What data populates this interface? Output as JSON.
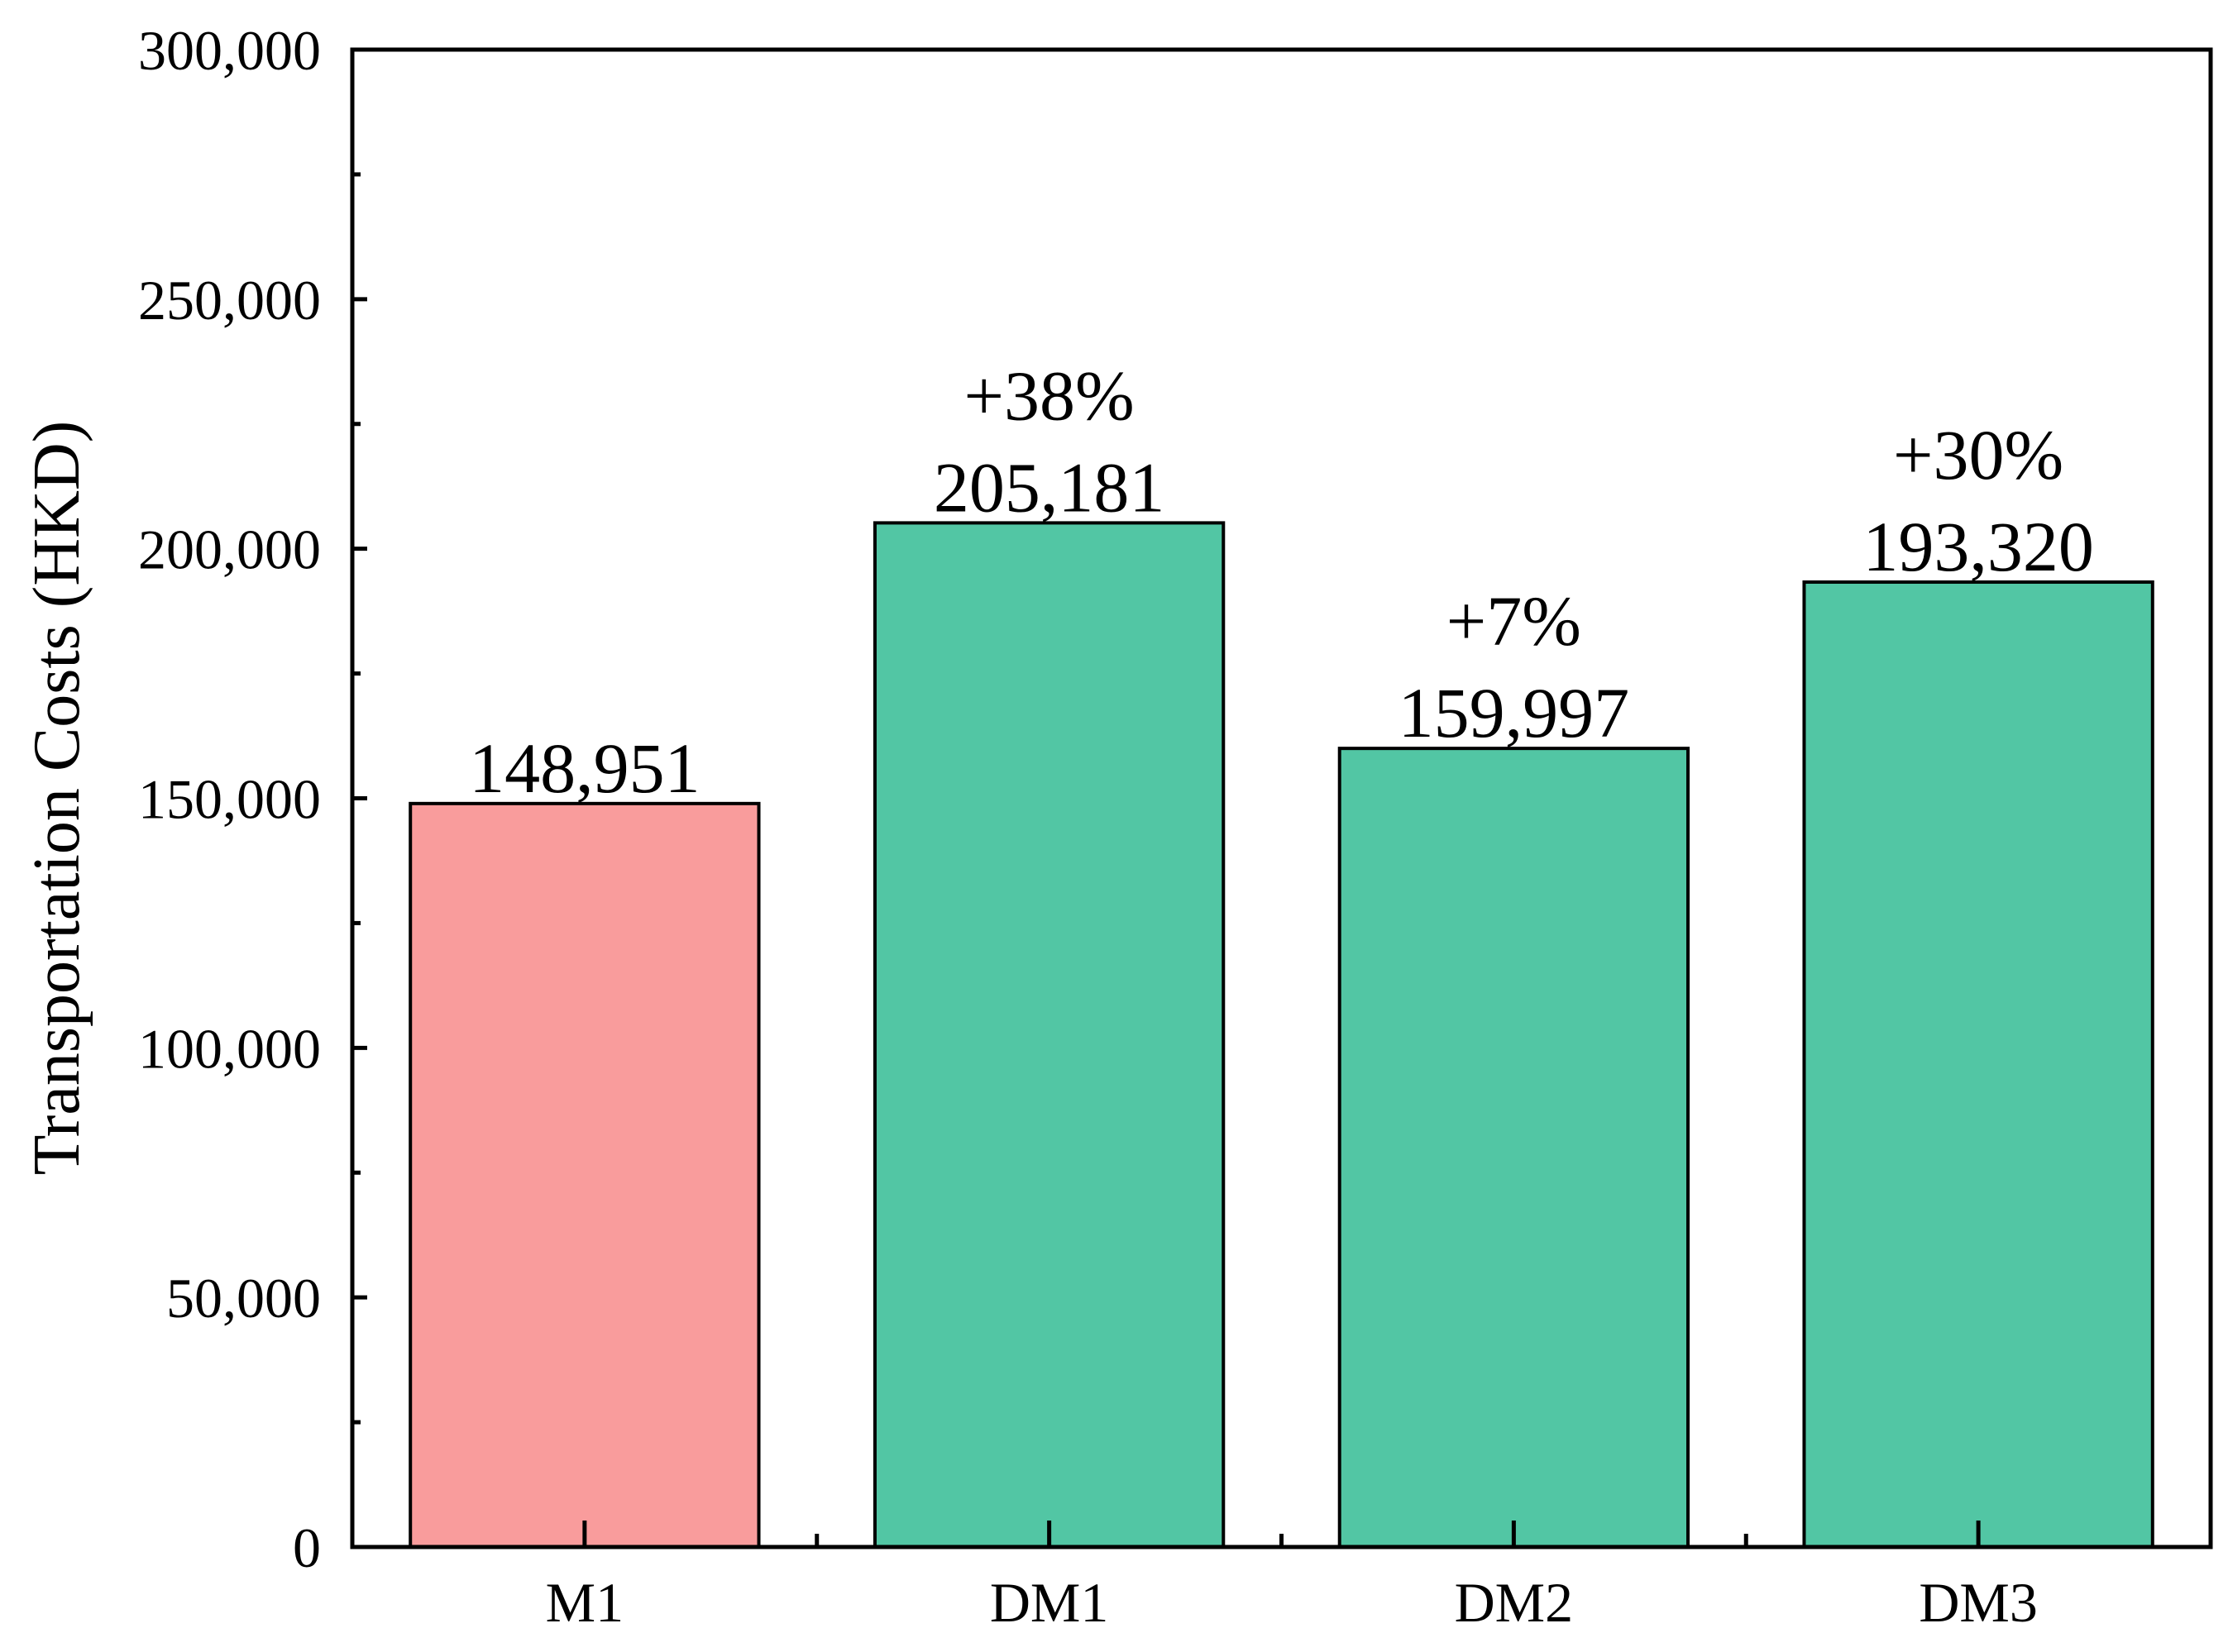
{
  "chart_data": {
    "type": "bar",
    "categories": [
      "M1",
      "DM1",
      "DM2",
      "DM3"
    ],
    "values": [
      148951,
      205181,
      159997,
      193320
    ],
    "value_labels": [
      "148,951",
      "205,181",
      "159,997",
      "193,320"
    ],
    "change_labels": [
      "",
      "+38%",
      "+7%",
      "+30%"
    ],
    "bar_colors": [
      "#F99C9C",
      "#52C6A4",
      "#52C6A4",
      "#52C6A4"
    ],
    "title": "",
    "xlabel": "",
    "ylabel": "Transportation Costs (HKD)",
    "ylim": [
      0,
      300000
    ],
    "y_ticks": [
      0,
      50000,
      100000,
      150000,
      200000,
      250000,
      300000
    ],
    "y_tick_labels": [
      "0",
      "50,000",
      "100,000",
      "150,000",
      "200,000",
      "250,000",
      "300,000"
    ],
    "grid": false,
    "legend": "none"
  }
}
